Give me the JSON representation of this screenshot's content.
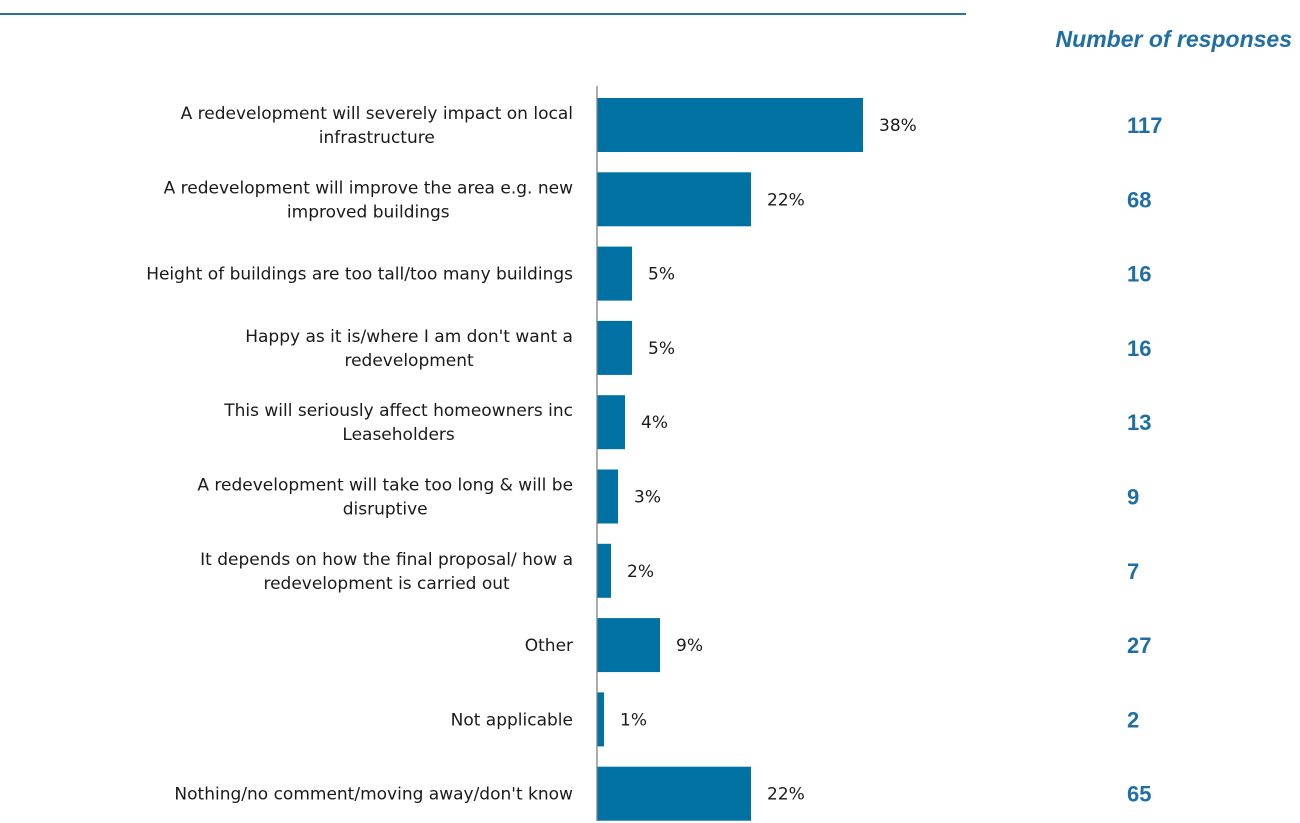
{
  "header": {
    "responses_label": "Number of responses"
  },
  "colors": {
    "bar": "#0071a3",
    "accent_text": "#1f6fa6",
    "rule": "#2b6f9a",
    "axis": "#7f7f7f"
  },
  "chart_data": {
    "type": "bar",
    "orientation": "horizontal",
    "title": "",
    "xlabel": "",
    "ylabel": "",
    "xlim": [
      0,
      100
    ],
    "grid": false,
    "legend": "none",
    "value_suffix": "%",
    "categories": [
      [
        "A redevelopment will severely impact on local",
        "infrastructure"
      ],
      [
        "A redevelopment will improve the area e.g. new",
        "improved buildings"
      ],
      [
        "Height of buildings are too tall/too many buildings"
      ],
      [
        "Happy as it is/where I am don't want a",
        "redevelopment"
      ],
      [
        "This will seriously affect homeowners inc",
        "Leaseholders"
      ],
      [
        "A redevelopment will take too long & will be",
        "disruptive"
      ],
      [
        "It depends on how the final proposal/ how a",
        "redevelopment is carried out"
      ],
      [
        "Other"
      ],
      [
        "Not applicable"
      ],
      [
        "Nothing/no comment/moving away/don't know"
      ]
    ],
    "values": [
      38,
      22,
      5,
      5,
      4,
      3,
      2,
      9,
      1,
      22
    ],
    "responses": [
      117,
      68,
      16,
      16,
      13,
      9,
      7,
      27,
      2,
      65
    ]
  }
}
